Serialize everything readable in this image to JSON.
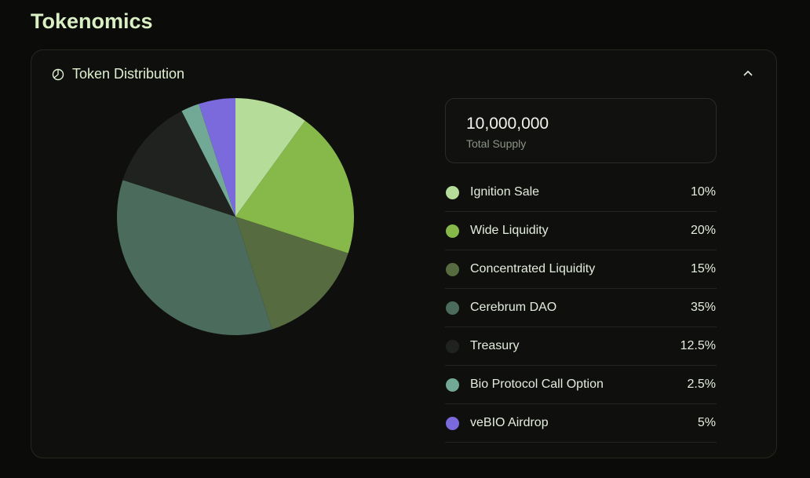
{
  "page": {
    "title": "Tokenomics"
  },
  "card": {
    "title": "Token Distribution",
    "icon": "pie-chart-icon",
    "toggle_icon": "chevron-up-icon"
  },
  "supply": {
    "value": "10,000,000",
    "label": "Total Supply"
  },
  "chart_data": {
    "type": "pie",
    "start": "top",
    "direction": "clockwise",
    "categories": [
      "Ignition Sale",
      "Wide Liquidity",
      "Concentrated Liquidity",
      "Cerebrum DAO",
      "Treasury",
      "Bio Protocol Call Option",
      "veBIO Airdrop"
    ],
    "values": [
      10,
      20,
      15,
      35,
      12.5,
      2.5,
      5
    ],
    "labels": [
      "10%",
      "20%",
      "15%",
      "35%",
      "12.5%",
      "2.5%",
      "5%"
    ],
    "colors": [
      "#b5dc98",
      "#86b94a",
      "#566b3f",
      "#4b6b5c",
      "#1f221e",
      "#72a896",
      "#7b6adb"
    ],
    "legend": "right"
  }
}
